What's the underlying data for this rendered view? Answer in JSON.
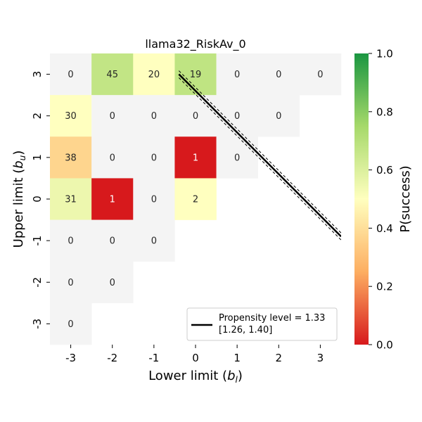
{
  "chart_data": {
    "type": "heatmap",
    "title": "llama32_RiskAv_0",
    "xlabel_main": "Lower limit (",
    "xlabel_var": "b",
    "xlabel_sub": "l",
    "xlabel_close": ")",
    "ylabel_main": "Upper limit (",
    "ylabel_var": "b",
    "ylabel_sub": "u",
    "ylabel_close": ")",
    "x_categories": [
      "-3",
      "-2",
      "-1",
      "0",
      "1",
      "2",
      "3"
    ],
    "y_categories": [
      "3",
      "2",
      "1",
      "0",
      "-1",
      "-2",
      "-3"
    ],
    "x_values": [
      -3,
      -2,
      -1,
      0,
      1,
      2,
      3
    ],
    "y_values": [
      3,
      2,
      1,
      0,
      -1,
      -2,
      -3
    ],
    "cells": [
      {
        "x": -3,
        "y": 3,
        "label": "0",
        "p": null
      },
      {
        "x": -2,
        "y": 3,
        "label": "45",
        "p": 0.67
      },
      {
        "x": -1,
        "y": 3,
        "label": "20",
        "p": 0.5
      },
      {
        "x": 0,
        "y": 3,
        "label": "19",
        "p": 0.68
      },
      {
        "x": 1,
        "y": 3,
        "label": "0",
        "p": null
      },
      {
        "x": 2,
        "y": 3,
        "label": "0",
        "p": null
      },
      {
        "x": 3,
        "y": 3,
        "label": "0",
        "p": null
      },
      {
        "x": -3,
        "y": 2,
        "label": "30",
        "p": 0.5
      },
      {
        "x": -2,
        "y": 2,
        "label": "0",
        "p": null
      },
      {
        "x": -1,
        "y": 2,
        "label": "0",
        "p": null
      },
      {
        "x": 0,
        "y": 2,
        "label": "0",
        "p": null
      },
      {
        "x": 1,
        "y": 2,
        "label": "0",
        "p": null
      },
      {
        "x": 2,
        "y": 2,
        "label": "0",
        "p": null
      },
      {
        "x": -3,
        "y": 1,
        "label": "38",
        "p": 0.37
      },
      {
        "x": -2,
        "y": 1,
        "label": "0",
        "p": null
      },
      {
        "x": -1,
        "y": 1,
        "label": "0",
        "p": null
      },
      {
        "x": 0,
        "y": 1,
        "label": "1",
        "p": 0.0
      },
      {
        "x": 1,
        "y": 1,
        "label": "0",
        "p": null
      },
      {
        "x": -3,
        "y": 0,
        "label": "31",
        "p": 0.55
      },
      {
        "x": -2,
        "y": 0,
        "label": "1",
        "p": 0.0
      },
      {
        "x": -1,
        "y": 0,
        "label": "0",
        "p": null
      },
      {
        "x": 0,
        "y": 0,
        "label": "2",
        "p": 0.5
      },
      {
        "x": -3,
        "y": -1,
        "label": "0",
        "p": null
      },
      {
        "x": -2,
        "y": -1,
        "label": "0",
        "p": null
      },
      {
        "x": -1,
        "y": -1,
        "label": "0",
        "p": null
      },
      {
        "x": -3,
        "y": -2,
        "label": "0",
        "p": null
      },
      {
        "x": -2,
        "y": -2,
        "label": "0",
        "p": null
      },
      {
        "x": -3,
        "y": -3,
        "label": "0",
        "p": null
      }
    ],
    "empty_color": "#f4f4f4",
    "propensity_line": {
      "label_line1": "Propensity level = 1.33",
      "label_line2": "[1.26, 1.40]",
      "level": 1.33,
      "lower": 1.26,
      "upper": 1.4,
      "start_x": -0.4,
      "end_x": 3.5
    },
    "colorbar": {
      "label": "P(success)",
      "range": [
        0.0,
        1.0
      ],
      "ticks": [
        "0.0",
        "0.2",
        "0.4",
        "0.6",
        "0.8",
        "1.0"
      ],
      "tick_values": [
        0.0,
        0.2,
        0.4,
        0.6,
        0.8,
        1.0
      ],
      "colors": [
        "#d7191c",
        "#fdae61",
        "#ffffbf",
        "#a6d96a",
        "#1a9641"
      ]
    },
    "legend_placement": "lower-right"
  }
}
